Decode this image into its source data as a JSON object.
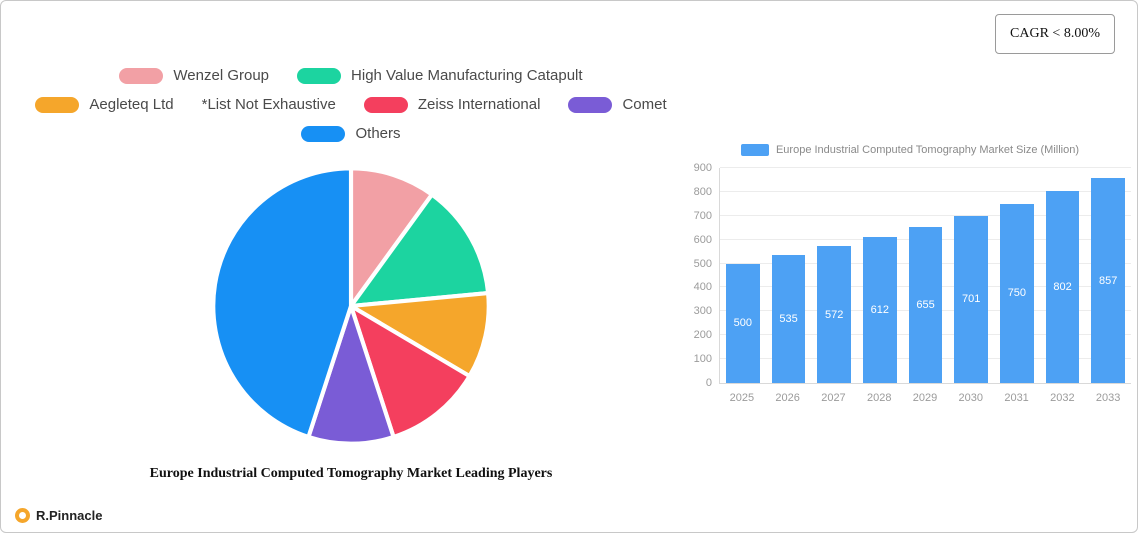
{
  "header": {
    "cagr_label": "CAGR < 8.00%"
  },
  "brand": {
    "name": "R.Pinnacle"
  },
  "chart_data": [
    {
      "type": "pie",
      "title": "Europe Industrial Computed Tomography Market Leading Players",
      "note": "*List Not Exhaustive",
      "labels": [
        "Wenzel Group",
        "High Value Manufacturing Catapult",
        "Aegleteq Ltd",
        "Zeiss International",
        "Comet",
        "Others"
      ],
      "values": [
        10,
        13.5,
        10,
        11.5,
        10,
        45
      ],
      "colors": [
        "#F2A0A5",
        "#1CD4A0",
        "#F5A62B",
        "#F43F5E",
        "#7A5CD6",
        "#1790F4"
      ],
      "legend_rows": [
        [
          0,
          1
        ],
        [
          2,
          "note",
          3,
          4
        ],
        [
          5
        ]
      ],
      "legend_position": "top",
      "start_angle_deg": -90,
      "direction": "clockwise"
    },
    {
      "type": "bar",
      "title": "Europe Industrial Computed Tomography Market Size (Million)",
      "categories": [
        "2025",
        "2026",
        "2027",
        "2028",
        "2029",
        "2030",
        "2031",
        "2032",
        "2033"
      ],
      "values": [
        500,
        535,
        572,
        612,
        655,
        701,
        750,
        802,
        857
      ],
      "ylim": [
        0,
        900
      ],
      "yticks": [
        0,
        100,
        200,
        300,
        400,
        500,
        600,
        700,
        800,
        900
      ],
      "bar_color": "#4DA1F4",
      "value_label_color": "#ffffff",
      "grid": true,
      "legend_position": "top",
      "xlabel": "",
      "ylabel": ""
    }
  ]
}
